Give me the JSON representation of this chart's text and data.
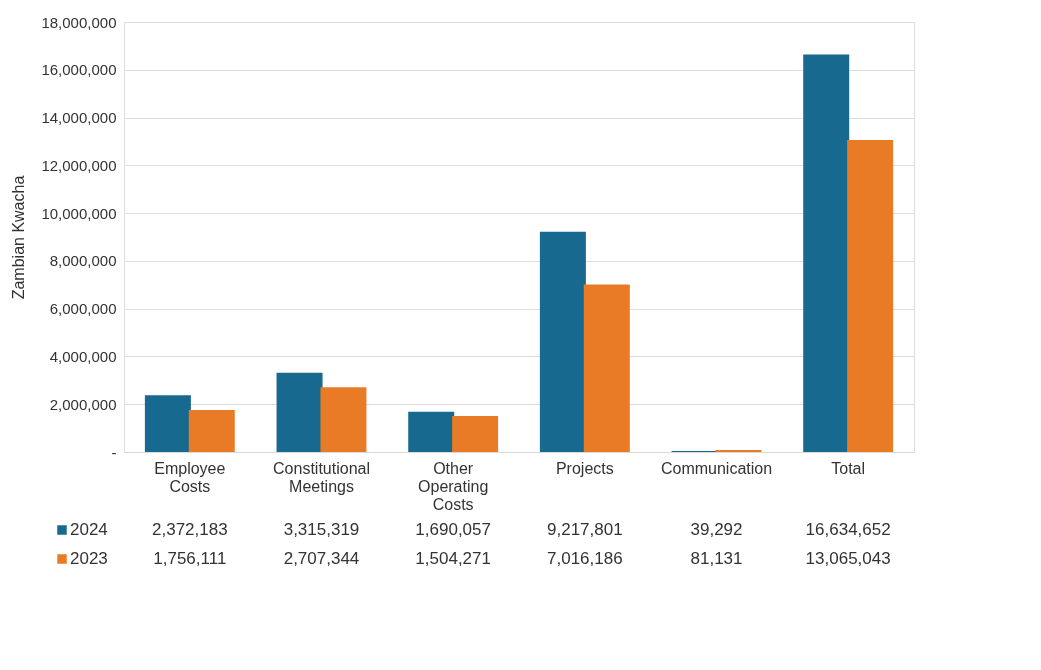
{
  "chart_data": {
    "type": "bar",
    "ylabel": "Zambian Kwacha",
    "categories": [
      "Employee Costs",
      "Constitutional Meetings",
      "Other Operating Costs",
      "Projects",
      "Communication",
      "Total"
    ],
    "series": [
      {
        "name": "2024",
        "color": "#17698f",
        "values": [
          2372183,
          3315319,
          1690057,
          9217801,
          39292,
          16634652
        ],
        "value_labels": [
          "2,372,183",
          "3,315,319",
          "1,690,057",
          "9,217,801",
          "39,292",
          "16,634,652"
        ]
      },
      {
        "name": "2023",
        "color": "#e97a26",
        "values": [
          1756111,
          2707344,
          1504271,
          7016186,
          81131,
          13065043
        ],
        "value_labels": [
          "1,756,111",
          "2,707,344",
          "1,504,271",
          "7,016,186",
          "81,131",
          "13,065,043"
        ]
      }
    ],
    "ylim": [
      0,
      18000000
    ],
    "yticks": [
      {
        "value": 0,
        "label": "-"
      },
      {
        "value": 2000000,
        "label": "2,000,000"
      },
      {
        "value": 4000000,
        "label": "4,000,000"
      },
      {
        "value": 6000000,
        "label": "6,000,000"
      },
      {
        "value": 8000000,
        "label": "8,000,000"
      },
      {
        "value": 10000000,
        "label": "10,000,000"
      },
      {
        "value": 12000000,
        "label": "12,000,000"
      },
      {
        "value": 14000000,
        "label": "14,000,000"
      },
      {
        "value": 16000000,
        "label": "16,000,000"
      },
      {
        "value": 18000000,
        "label": "18,000,000"
      }
    ],
    "grid": "y",
    "legend": "bottom"
  }
}
